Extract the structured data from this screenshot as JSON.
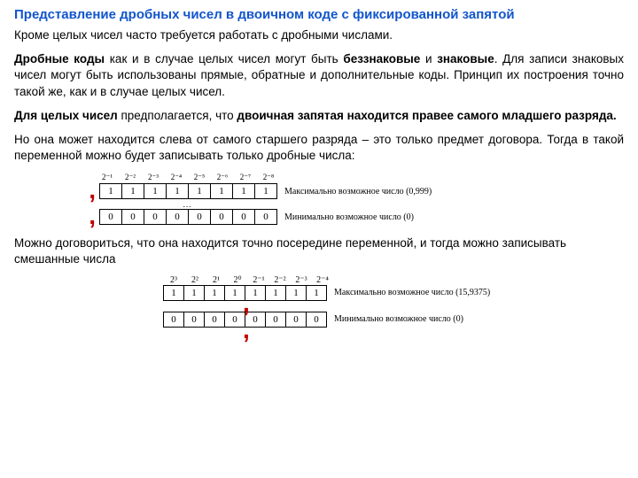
{
  "title": "Представление дробных чисел в двоичном коде с фиксированной запятой",
  "p1": "Кроме целых чисел часто требуется работать с дробными числами.",
  "p2": {
    "pre": "Дробные коды",
    "mid": " как и в случае целых чисел могут быть ",
    "b2": "беззнаковые",
    "mid2": " и ",
    "b3": "знаковые",
    "rest": ". Для записи знаковых чисел могут быть использованы прямые, обратные и дополнительные коды. Принцип их построения точно такой же, как и в случае целых чисел."
  },
  "p3": {
    "b1": "Для целых чисел",
    "mid": " предполагается, что ",
    "b2": "двоичная запятая находится правее самого младшего разряда."
  },
  "p4": "Но она может находится слева от самого старшего разряда – это только предмет договора. Тогда в такой переменной можно будет записывать только дробные числа:",
  "p5": "Можно договориться, что она находится точно посередине переменной, и тогда можно записывать смешанные числа",
  "fig1": {
    "exps": [
      "2⁻¹",
      "2⁻²",
      "2⁻³",
      "2⁻⁴",
      "2⁻⁵",
      "2⁻⁶",
      "2⁻⁷",
      "2⁻⁸"
    ],
    "row1": [
      "1",
      "1",
      "1",
      "1",
      "1",
      "1",
      "1",
      "1"
    ],
    "label1": "Максимально возможное число (0,999)",
    "row2": [
      "0",
      "0",
      "0",
      "0",
      "0",
      "0",
      "0",
      "0"
    ],
    "label2": "Минимально возможное число (0)",
    "dots": "…"
  },
  "fig2": {
    "exps": [
      "2³",
      "2²",
      "2¹",
      "2⁰",
      "2⁻¹",
      "2⁻²",
      "2⁻³",
      "2⁻⁴"
    ],
    "row1": [
      "1",
      "1",
      "1",
      "1",
      "1",
      "1",
      "1",
      "1"
    ],
    "label1": "Максимально возможное число (15,9375)",
    "row2": [
      "0",
      "0",
      "0",
      "0",
      "0",
      "0",
      "0",
      "0"
    ],
    "label2": "Минимально возможное число (0)"
  },
  "colors": {
    "title": "#1155cc",
    "comma": "#c00000",
    "text": "#000000",
    "background": "#ffffff",
    "border": "#000000"
  }
}
